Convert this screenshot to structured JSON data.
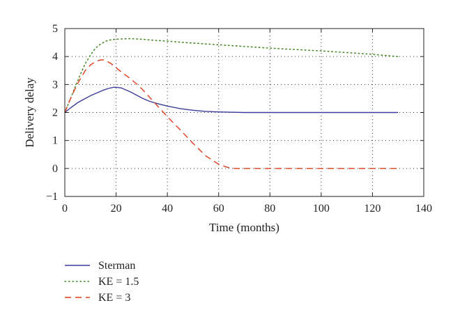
{
  "chart_data": {
    "type": "line",
    "xlabel": "Time (months)",
    "ylabel": "Delivery delay",
    "xlim": [
      0,
      140
    ],
    "ylim": [
      -1,
      5
    ],
    "xticks": [
      0,
      20,
      40,
      60,
      80,
      100,
      120,
      140
    ],
    "yticks": [
      -1,
      0,
      1,
      2,
      3,
      4,
      5
    ],
    "grid": true,
    "legend_position": "below",
    "series": [
      {
        "name": "Sterman",
        "color": "#3c3c9c",
        "style": "solid",
        "x": [
          0,
          2,
          5,
          8,
          10,
          13,
          15,
          17,
          19,
          20,
          22,
          24,
          26,
          28,
          30,
          33,
          36,
          40,
          45,
          50,
          55,
          60,
          65,
          70,
          80,
          100,
          120,
          130
        ],
        "y": [
          2.0,
          2.15,
          2.35,
          2.5,
          2.6,
          2.72,
          2.8,
          2.86,
          2.9,
          2.9,
          2.88,
          2.8,
          2.72,
          2.62,
          2.52,
          2.4,
          2.32,
          2.23,
          2.14,
          2.08,
          2.04,
          2.02,
          2.01,
          2.0,
          2.0,
          2.0,
          2.0,
          2.0
        ]
      },
      {
        "name": "KE = 1.5",
        "color": "#4a8a2a",
        "style": "dotted",
        "x": [
          0,
          2,
          4,
          6,
          8,
          10,
          12,
          14,
          16,
          18,
          20,
          22,
          25,
          28,
          30,
          35,
          40,
          50,
          60,
          70,
          80,
          90,
          100,
          110,
          120,
          130
        ],
        "y": [
          2.0,
          2.45,
          2.9,
          3.35,
          3.75,
          4.05,
          4.3,
          4.45,
          4.55,
          4.6,
          4.62,
          4.63,
          4.64,
          4.63,
          4.62,
          4.58,
          4.55,
          4.48,
          4.42,
          4.36,
          4.3,
          4.25,
          4.2,
          4.14,
          4.08,
          4.0
        ]
      },
      {
        "name": "KE = 3",
        "color": "#e03c1c",
        "style": "dashed",
        "x": [
          0,
          2,
          4,
          6,
          8,
          10,
          12,
          14,
          15,
          16,
          18,
          20,
          22,
          25,
          28,
          30,
          35,
          40,
          45,
          50,
          55,
          60,
          63,
          65,
          67,
          70,
          80,
          100,
          120,
          130
        ],
        "y": [
          2.0,
          2.45,
          2.85,
          3.2,
          3.5,
          3.7,
          3.82,
          3.88,
          3.88,
          3.85,
          3.75,
          3.6,
          3.45,
          3.25,
          3.02,
          2.85,
          2.35,
          1.85,
          1.38,
          0.9,
          0.45,
          0.15,
          0.05,
          0.01,
          0.0,
          0.0,
          0.0,
          0.0,
          0.0,
          0.0
        ]
      }
    ]
  }
}
